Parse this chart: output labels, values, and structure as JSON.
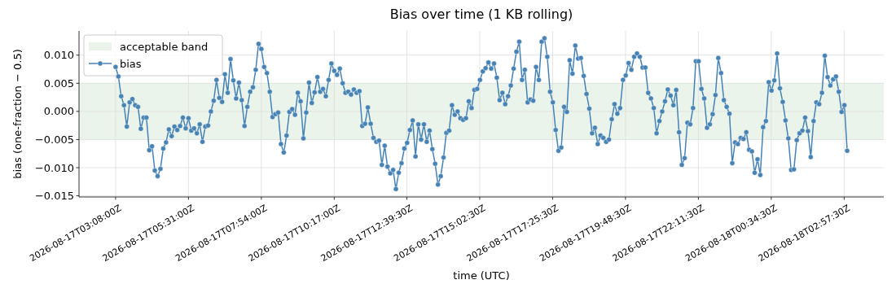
{
  "chart_data": {
    "type": "line",
    "title": "Bias over time (1 KB rolling)",
    "xlabel": "time (UTC)",
    "ylabel": "bias (one-fraction − 0.5)",
    "x": [
      "2026-08-17T03:08:00",
      "2026-08-17T03:13:30",
      "2026-08-17T03:19:00",
      "2026-08-17T03:24:30",
      "2026-08-17T03:30:00",
      "2026-08-17T03:35:30",
      "2026-08-17T03:41:00",
      "2026-08-17T03:46:30",
      "2026-08-17T03:52:00",
      "2026-08-17T03:57:30",
      "2026-08-17T04:03:00",
      "2026-08-17T04:08:30",
      "2026-08-17T04:14:00",
      "2026-08-17T04:19:30",
      "2026-08-17T04:25:00",
      "2026-08-17T04:30:30",
      "2026-08-17T04:36:00",
      "2026-08-17T04:41:30",
      "2026-08-17T04:47:00",
      "2026-08-17T04:52:30",
      "2026-08-17T04:58:00",
      "2026-08-17T05:03:30",
      "2026-08-17T05:09:00",
      "2026-08-17T05:14:30",
      "2026-08-17T05:20:00",
      "2026-08-17T05:25:30",
      "2026-08-17T05:31:00",
      "2026-08-17T05:36:30",
      "2026-08-17T05:42:00",
      "2026-08-17T05:47:30",
      "2026-08-17T05:53:00",
      "2026-08-17T05:58:30",
      "2026-08-17T06:04:00",
      "2026-08-17T06:09:30",
      "2026-08-17T06:15:00",
      "2026-08-17T06:20:30",
      "2026-08-17T06:26:00",
      "2026-08-17T06:31:30",
      "2026-08-17T06:37:00",
      "2026-08-17T06:42:30",
      "2026-08-17T06:48:00",
      "2026-08-17T06:53:30",
      "2026-08-17T06:59:00",
      "2026-08-17T07:04:30",
      "2026-08-17T07:10:00",
      "2026-08-17T07:15:30",
      "2026-08-17T07:21:00",
      "2026-08-17T07:26:30",
      "2026-08-17T07:32:00",
      "2026-08-17T07:37:30",
      "2026-08-17T07:43:00",
      "2026-08-17T07:48:30",
      "2026-08-17T07:54:00",
      "2026-08-17T07:59:30",
      "2026-08-17T08:05:00",
      "2026-08-17T08:10:30",
      "2026-08-17T08:16:00",
      "2026-08-17T08:21:30",
      "2026-08-17T08:27:00",
      "2026-08-17T08:32:30",
      "2026-08-17T08:38:00",
      "2026-08-17T08:43:30",
      "2026-08-17T08:49:00",
      "2026-08-17T08:54:30",
      "2026-08-17T09:00:00",
      "2026-08-17T09:05:30",
      "2026-08-17T09:11:00",
      "2026-08-17T09:16:30",
      "2026-08-17T09:22:00",
      "2026-08-17T09:27:30",
      "2026-08-17T09:33:00",
      "2026-08-17T09:38:30",
      "2026-08-17T09:44:00",
      "2026-08-17T09:49:30",
      "2026-08-17T09:55:00",
      "2026-08-17T10:00:30",
      "2026-08-17T10:06:00",
      "2026-08-17T10:11:30",
      "2026-08-17T10:17:00",
      "2026-08-17T10:22:30",
      "2026-08-17T10:28:00",
      "2026-08-17T10:33:30",
      "2026-08-17T10:39:00",
      "2026-08-17T10:44:30",
      "2026-08-17T10:50:00",
      "2026-08-17T10:55:30",
      "2026-08-17T11:01:00",
      "2026-08-17T11:06:30",
      "2026-08-17T11:12:00",
      "2026-08-17T11:17:30",
      "2026-08-17T11:23:00",
      "2026-08-17T11:28:30",
      "2026-08-17T11:34:00",
      "2026-08-17T11:39:30",
      "2026-08-17T11:45:00",
      "2026-08-17T11:50:30",
      "2026-08-17T11:56:00",
      "2026-08-17T12:01:30",
      "2026-08-17T12:07:00",
      "2026-08-17T12:12:30",
      "2026-08-17T12:18:00",
      "2026-08-17T12:23:30",
      "2026-08-17T12:29:00",
      "2026-08-17T12:34:30",
      "2026-08-17T12:40:00",
      "2026-08-17T12:45:30",
      "2026-08-17T12:51:00",
      "2026-08-17T12:56:30",
      "2026-08-17T13:02:00",
      "2026-08-17T13:07:30",
      "2026-08-17T13:13:00",
      "2026-08-17T13:18:30",
      "2026-08-17T13:24:00",
      "2026-08-17T13:29:30",
      "2026-08-17T13:35:00",
      "2026-08-17T13:40:30",
      "2026-08-17T13:46:00",
      "2026-08-17T13:51:30",
      "2026-08-17T13:57:00",
      "2026-08-17T14:02:30",
      "2026-08-17T14:08:00",
      "2026-08-17T14:13:30",
      "2026-08-17T14:19:00",
      "2026-08-17T14:24:30",
      "2026-08-17T14:30:00",
      "2026-08-17T14:35:30",
      "2026-08-17T14:41:00",
      "2026-08-17T14:46:30",
      "2026-08-17T14:52:00",
      "2026-08-17T14:57:30",
      "2026-08-17T15:03:00",
      "2026-08-17T15:08:30",
      "2026-08-17T15:14:00",
      "2026-08-17T15:19:30",
      "2026-08-17T15:25:00",
      "2026-08-17T15:30:30",
      "2026-08-17T15:36:00",
      "2026-08-17T15:41:30",
      "2026-08-17T15:47:00",
      "2026-08-17T15:52:30",
      "2026-08-17T15:58:00",
      "2026-08-17T16:03:30",
      "2026-08-17T16:09:00",
      "2026-08-17T16:14:30",
      "2026-08-17T16:20:00",
      "2026-08-17T16:25:30",
      "2026-08-17T16:31:00",
      "2026-08-17T16:36:30",
      "2026-08-17T16:42:00",
      "2026-08-17T16:47:30",
      "2026-08-17T16:53:00",
      "2026-08-17T16:58:30",
      "2026-08-17T17:04:00",
      "2026-08-17T17:09:30",
      "2026-08-17T17:15:00",
      "2026-08-17T17:20:30",
      "2026-08-17T17:26:00",
      "2026-08-17T17:31:30",
      "2026-08-17T17:37:00",
      "2026-08-17T17:42:30",
      "2026-08-17T17:48:00",
      "2026-08-17T17:53:30",
      "2026-08-17T17:59:00",
      "2026-08-17T18:04:30",
      "2026-08-17T18:10:00",
      "2026-08-17T18:15:30",
      "2026-08-17T18:21:00",
      "2026-08-17T18:26:30",
      "2026-08-17T18:32:00",
      "2026-08-17T18:37:30",
      "2026-08-17T18:43:00",
      "2026-08-17T18:48:30",
      "2026-08-17T18:54:00",
      "2026-08-17T18:59:30",
      "2026-08-17T19:05:00",
      "2026-08-17T19:10:30",
      "2026-08-17T19:16:00",
      "2026-08-17T19:21:30",
      "2026-08-17T19:27:00",
      "2026-08-17T19:32:30",
      "2026-08-17T19:38:00",
      "2026-08-17T19:43:30",
      "2026-08-17T19:49:00",
      "2026-08-17T19:54:30",
      "2026-08-17T20:00:00",
      "2026-08-17T20:05:30",
      "2026-08-17T20:11:00",
      "2026-08-17T20:16:30",
      "2026-08-17T20:22:00",
      "2026-08-17T20:27:30",
      "2026-08-17T20:33:00",
      "2026-08-17T20:38:30",
      "2026-08-17T20:44:00",
      "2026-08-17T20:49:30",
      "2026-08-17T20:55:00",
      "2026-08-17T21:00:30",
      "2026-08-17T21:06:00",
      "2026-08-17T21:11:30",
      "2026-08-17T21:17:00",
      "2026-08-17T21:22:30",
      "2026-08-17T21:28:00",
      "2026-08-17T21:33:30",
      "2026-08-17T21:39:00",
      "2026-08-17T21:44:30",
      "2026-08-17T21:50:00",
      "2026-08-17T21:55:30",
      "2026-08-17T22:01:00",
      "2026-08-17T22:06:30",
      "2026-08-17T22:12:00",
      "2026-08-17T22:17:30",
      "2026-08-17T22:23:00",
      "2026-08-17T22:28:30",
      "2026-08-17T22:34:00",
      "2026-08-17T22:39:30",
      "2026-08-17T22:45:00",
      "2026-08-17T22:50:30",
      "2026-08-17T22:56:00",
      "2026-08-17T23:01:30",
      "2026-08-17T23:07:00",
      "2026-08-17T23:12:30",
      "2026-08-17T23:18:00",
      "2026-08-17T23:23:30",
      "2026-08-17T23:29:00",
      "2026-08-17T23:34:30",
      "2026-08-17T23:40:00",
      "2026-08-17T23:45:30",
      "2026-08-17T23:51:00",
      "2026-08-17T23:56:30",
      "2026-08-18T00:02:00",
      "2026-08-18T00:07:30",
      "2026-08-18T00:13:00",
      "2026-08-18T00:18:30",
      "2026-08-18T00:24:00",
      "2026-08-18T00:29:30",
      "2026-08-18T00:35:00",
      "2026-08-18T00:40:30",
      "2026-08-18T00:46:00",
      "2026-08-18T00:51:30",
      "2026-08-18T00:57:00",
      "2026-08-18T01:02:30",
      "2026-08-18T01:08:00",
      "2026-08-18T01:13:30",
      "2026-08-18T01:19:00",
      "2026-08-18T01:24:30",
      "2026-08-18T01:30:00",
      "2026-08-18T01:35:30",
      "2026-08-18T01:41:00",
      "2026-08-18T01:46:30",
      "2026-08-18T01:52:00",
      "2026-08-18T01:57:30",
      "2026-08-18T02:03:00",
      "2026-08-18T02:08:30",
      "2026-08-18T02:14:00",
      "2026-08-18T02:19:30",
      "2026-08-18T02:25:00",
      "2026-08-18T02:30:30",
      "2026-08-18T02:36:00",
      "2026-08-18T02:41:30",
      "2026-08-18T02:47:00",
      "2026-08-18T02:52:30",
      "2026-08-18T02:58:00",
      "2026-08-18T03:03:30"
    ],
    "series": [
      {
        "name": "bias",
        "color": "#4682b4",
        "values": [
          0.0079,
          0.0062,
          0.0027,
          0.0011,
          -0.0027,
          0.0016,
          0.0022,
          0.0011,
          0.0008,
          -0.0031,
          -0.0011,
          -0.0011,
          -0.0069,
          -0.0062,
          -0.0105,
          -0.0115,
          -0.0102,
          -0.0066,
          -0.0055,
          -0.0032,
          -0.0044,
          -0.0027,
          -0.0033,
          -0.0026,
          -0.0011,
          -0.003,
          -0.0012,
          -0.0034,
          -0.003,
          -0.0039,
          -0.0023,
          -0.0054,
          -0.0027,
          -0.0025,
          0.0,
          0.0019,
          0.0056,
          0.0024,
          0.0017,
          0.0066,
          0.0033,
          0.0093,
          0.0055,
          0.0023,
          0.0051,
          0.002,
          -0.0026,
          0.0008,
          0.0035,
          0.0043,
          0.0074,
          0.012,
          0.0111,
          0.0079,
          0.0068,
          0.0035,
          -0.001,
          -0.0005,
          -0.0002,
          -0.0058,
          -0.0073,
          -0.0043,
          -0.0001,
          0.0004,
          -0.0006,
          0.0033,
          0.0018,
          -0.0048,
          -0.0002,
          0.0051,
          0.0015,
          0.0034,
          0.0061,
          0.0035,
          0.004,
          0.0027,
          0.0056,
          0.0085,
          0.0072,
          0.0065,
          0.0076,
          0.005,
          0.0033,
          0.0035,
          0.003,
          0.0039,
          0.0033,
          0.0036,
          -0.0026,
          -0.0022,
          0.0007,
          -0.0022,
          -0.0047,
          -0.0054,
          -0.0052,
          -0.0095,
          -0.0061,
          -0.0098,
          -0.011,
          -0.0104,
          -0.0138,
          -0.0109,
          -0.0092,
          -0.0066,
          -0.0056,
          -0.0033,
          -0.0016,
          -0.008,
          -0.0023,
          -0.005,
          -0.0023,
          -0.0054,
          -0.0034,
          -0.0067,
          -0.0093,
          -0.013,
          -0.0115,
          -0.0082,
          -0.0038,
          -0.0034,
          0.0011,
          -0.0006,
          0.0,
          -0.0012,
          -0.0015,
          -0.0012,
          0.0018,
          0.0006,
          0.0038,
          0.004,
          0.0056,
          0.0071,
          0.0077,
          0.0087,
          0.0076,
          0.0085,
          0.006,
          0.002,
          0.0033,
          0.0013,
          0.0027,
          0.0046,
          0.0076,
          0.0106,
          0.0124,
          0.0056,
          0.0074,
          0.0016,
          0.0021,
          0.0019,
          0.0079,
          0.0056,
          0.0124,
          0.013,
          0.0097,
          0.0035,
          0.0016,
          -0.0033,
          -0.007,
          -0.0064,
          0.0008,
          -0.0001,
          0.0091,
          0.0067,
          0.0117,
          0.0094,
          0.0095,
          0.0063,
          0.0031,
          0.0005,
          -0.0039,
          -0.0029,
          -0.0058,
          -0.0043,
          -0.0047,
          -0.0054,
          -0.005,
          -0.0014,
          0.0013,
          -0.0004,
          0.0006,
          0.0056,
          0.0064,
          0.0086,
          0.0074,
          0.0097,
          0.0103,
          0.0097,
          0.0078,
          0.0078,
          0.0033,
          0.0023,
          0.0006,
          -0.0039,
          -0.0017,
          0.0,
          0.0018,
          0.0039,
          0.0028,
          0.0011,
          0.0038,
          -0.0037,
          -0.0095,
          -0.0083,
          -0.002,
          -0.0023,
          0.0006,
          0.0089,
          0.0089,
          0.004,
          0.0023,
          -0.0029,
          -0.0023,
          -0.0005,
          0.0029,
          0.0095,
          0.0068,
          0.002,
          0.0008,
          -0.0004,
          -0.0092,
          -0.0055,
          -0.0058,
          -0.0047,
          -0.0049,
          -0.0037,
          -0.0068,
          -0.0071,
          -0.0109,
          -0.0085,
          -0.0113,
          -0.0028,
          -0.0017,
          0.0052,
          0.0037,
          0.0055,
          0.0103,
          0.0041,
          0.0017,
          -0.0016,
          -0.0048,
          -0.0104,
          -0.0103,
          -0.0051,
          -0.0039,
          -0.0034,
          -0.0011,
          -0.0035,
          -0.0081,
          -0.0017,
          0.0016,
          0.0013,
          0.0033,
          0.0099,
          0.0061,
          0.0046,
          0.0057,
          0.0062,
          0.0035,
          -0.0001,
          0.0011,
          -0.007
        ]
      }
    ],
    "xlim": [
      "2026-08-17T01:56:13",
      "2026-08-18T04:15:17"
    ],
    "xticks": [
      {
        "value": "2026-08-17T03:08:00",
        "label": "2026-08-17T03:08:00Z"
      },
      {
        "value": "2026-08-17T05:31:00",
        "label": "2026-08-17T05:31:00Z"
      },
      {
        "value": "2026-08-17T07:54:00",
        "label": "2026-08-17T07:54:00Z"
      },
      {
        "value": "2026-08-17T10:17:00",
        "label": "2026-08-17T10:17:00Z"
      },
      {
        "value": "2026-08-17T12:39:30",
        "label": "2026-08-17T12:39:30Z"
      },
      {
        "value": "2026-08-17T15:02:30",
        "label": "2026-08-17T15:02:30Z"
      },
      {
        "value": "2026-08-17T17:25:30",
        "label": "2026-08-17T17:25:30Z"
      },
      {
        "value": "2026-08-17T19:48:30",
        "label": "2026-08-17T19:48:30Z"
      },
      {
        "value": "2026-08-17T22:11:30",
        "label": "2026-08-17T22:11:30Z"
      },
      {
        "value": "2026-08-18T00:34:30",
        "label": "2026-08-18T00:34:30Z"
      },
      {
        "value": "2026-08-18T02:57:30",
        "label": "2026-08-18T02:57:30Z"
      }
    ],
    "ylim": [
      -0.0152,
      0.0143
    ],
    "yticks": [
      {
        "value": -0.015,
        "label": "−0.015"
      },
      {
        "value": -0.01,
        "label": "−0.010"
      },
      {
        "value": -0.005,
        "label": "−0.005"
      },
      {
        "value": 0,
        "label": "0.000"
      },
      {
        "value": 0.005,
        "label": "0.005"
      },
      {
        "value": 0.01,
        "label": "0.010"
      }
    ],
    "bands": [
      {
        "axis": "y",
        "from": -0.005,
        "to": 0.005,
        "label": "acceptable band",
        "color": "#eaf4ea"
      }
    ],
    "grid": true,
    "legend": "top left",
    "marker": "circle"
  }
}
